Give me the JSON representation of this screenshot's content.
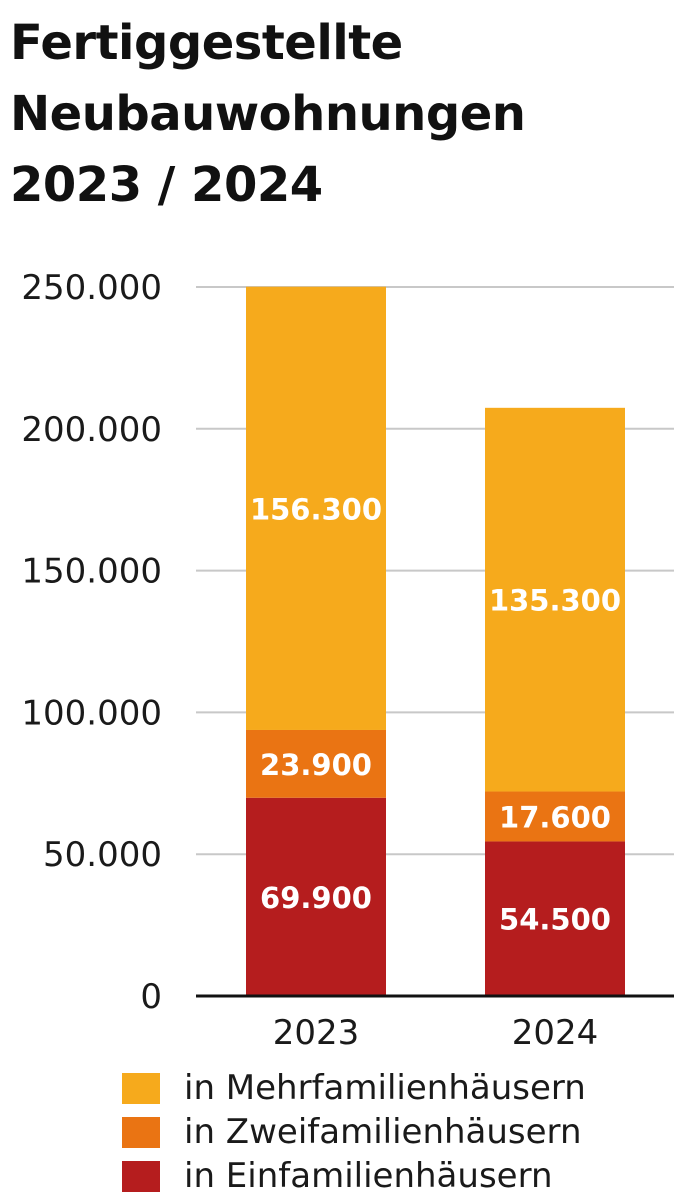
{
  "chart_data": {
    "type": "bar",
    "stacked": true,
    "title_lines": [
      "Fertiggestellte",
      "Neubauwohnungen",
      "2023 / 2024"
    ],
    "categories": [
      "2023",
      "2024"
    ],
    "series": [
      {
        "name": "in Einfamilienhäusern",
        "color": "#b51d1e",
        "values": [
          69900,
          54500
        ],
        "labels": [
          "69.900",
          "54.500"
        ]
      },
      {
        "name": "in Zweifamilienhäusern",
        "color": "#ea7413",
        "values": [
          23900,
          17600
        ],
        "labels": [
          "23.900",
          "17.600"
        ]
      },
      {
        "name": "in Mehrfamilienhäusern",
        "color": "#f6aa1c",
        "values": [
          156300,
          135300
        ],
        "labels": [
          "156.300",
          "135.300"
        ]
      }
    ],
    "legend_order": [
      2,
      1,
      0
    ],
    "ylim": [
      0,
      250000
    ],
    "yticks": [
      0,
      50000,
      100000,
      150000,
      200000,
      250000
    ],
    "ytick_labels": [
      "0",
      "50.000",
      "100.000",
      "150.000",
      "200.000",
      "250.000"
    ],
    "grid": true,
    "legend_position": "bottom"
  }
}
